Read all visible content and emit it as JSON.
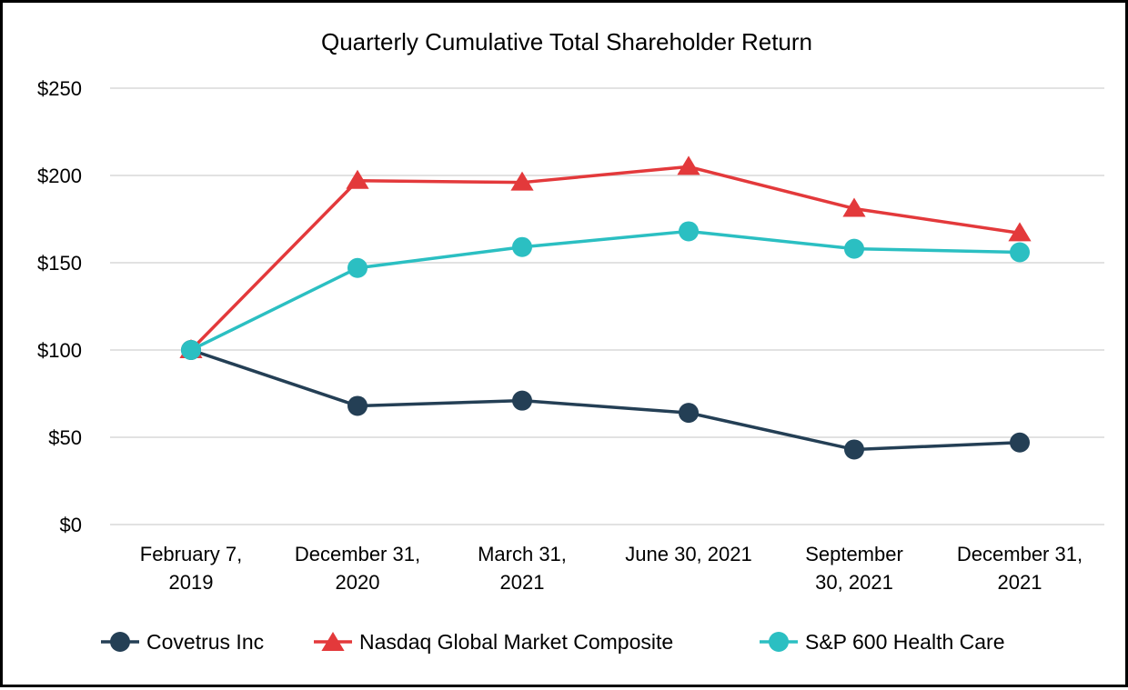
{
  "chart_data": {
    "type": "line",
    "title": "Quarterly Cumulative Total Shareholder Return",
    "xlabel": "",
    "ylabel": "",
    "categories": [
      [
        "February 7,",
        "2019"
      ],
      [
        "December 31,",
        "2020"
      ],
      [
        "March 31,",
        "2021"
      ],
      [
        "June 30, 2021"
      ],
      [
        "September",
        "30, 2021"
      ],
      [
        "December 31,",
        "2021"
      ]
    ],
    "ylim": [
      0,
      250
    ],
    "yticks": [
      0,
      50,
      100,
      150,
      200,
      250
    ],
    "ytick_labels": [
      "$0",
      "$50",
      "$100",
      "$150",
      "$200",
      "$250"
    ],
    "grid": true,
    "legend_position": "bottom",
    "series": [
      {
        "name": "Covetrus Inc",
        "color": "#243f55",
        "marker": "circle",
        "values": [
          100,
          68,
          71,
          64,
          43,
          47
        ]
      },
      {
        "name": "Nasdaq Global Market Composite",
        "color": "#e3393b",
        "marker": "triangle",
        "values": [
          100,
          197,
          196,
          205,
          181,
          167
        ]
      },
      {
        "name": "S&P 600 Health Care",
        "color": "#2bbfc2",
        "marker": "circle",
        "values": [
          100,
          147,
          159,
          168,
          158,
          156
        ]
      }
    ]
  }
}
